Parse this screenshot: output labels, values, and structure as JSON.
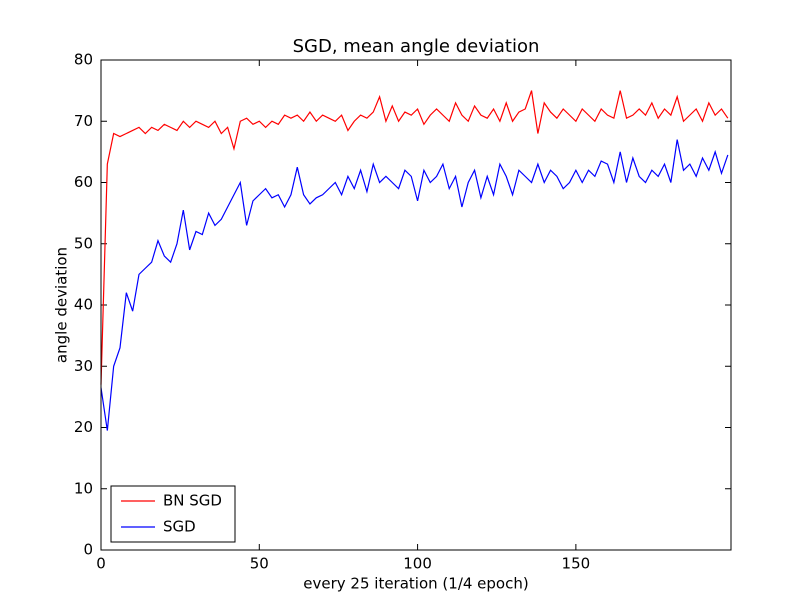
{
  "chart_data": {
    "type": "line",
    "title": "SGD, mean angle deviation",
    "x_label": "every 25 iteration (1/4 epoch)",
    "y_label": "angle deviation",
    "x": [
      0,
      2,
      4,
      6,
      8,
      10,
      12,
      14,
      16,
      18,
      20,
      22,
      24,
      26,
      28,
      30,
      32,
      34,
      36,
      38,
      40,
      42,
      44,
      46,
      48,
      50,
      52,
      54,
      56,
      58,
      60,
      62,
      64,
      66,
      68,
      70,
      72,
      74,
      76,
      78,
      80,
      82,
      84,
      86,
      88,
      90,
      92,
      94,
      96,
      98,
      100,
      102,
      104,
      106,
      108,
      110,
      112,
      114,
      116,
      118,
      120,
      122,
      124,
      126,
      128,
      130,
      132,
      134,
      136,
      138,
      140,
      142,
      144,
      146,
      148,
      150,
      152,
      154,
      156,
      158,
      160,
      162,
      164,
      166,
      168,
      170,
      172,
      174,
      176,
      178,
      180,
      182,
      184,
      186,
      188,
      190,
      192,
      194,
      196,
      198
    ],
    "series": [
      {
        "name": "BN SGD",
        "color": "#ff0000",
        "values": [
          27,
          63,
          68,
          67.5,
          68,
          68.5,
          69,
          68,
          69,
          68.5,
          69.5,
          69,
          68.5,
          70,
          69,
          70,
          69.5,
          69,
          70,
          68,
          69,
          65.5,
          70,
          70.5,
          69.5,
          70,
          69,
          70,
          69.5,
          71,
          70.5,
          71,
          70,
          71.5,
          70,
          71,
          70.5,
          70,
          71,
          68.5,
          70,
          71,
          70.5,
          71.5,
          74,
          70,
          72.5,
          70,
          71.5,
          71,
          72,
          69.5,
          71,
          72,
          71,
          70,
          73,
          71,
          70,
          72.5,
          71,
          70.5,
          72,
          70,
          73,
          70,
          71.5,
          72,
          75,
          68,
          73,
          71.5,
          70.5,
          72,
          71,
          70,
          72,
          71,
          70,
          72,
          71,
          70.5,
          75,
          70.5,
          71,
          72,
          71,
          73,
          70.5,
          72,
          71,
          74,
          70,
          71,
          72,
          70,
          73,
          71,
          72,
          70.5
        ]
      },
      {
        "name": "SGD",
        "color": "#0000ff",
        "values": [
          26.5,
          19.5,
          30,
          33,
          42,
          39,
          45,
          46,
          47,
          50.5,
          48,
          47,
          50,
          55.5,
          49,
          52,
          51.5,
          55,
          53,
          54,
          56,
          58,
          60,
          53,
          57,
          58,
          59,
          57.5,
          58,
          56,
          58,
          62.5,
          58,
          56.5,
          57.5,
          58,
          59,
          60,
          58,
          61,
          59,
          62,
          58.5,
          63,
          60,
          61,
          60,
          59,
          62,
          61,
          57,
          62,
          60,
          61,
          63,
          59,
          61,
          56,
          60,
          62,
          57.5,
          61,
          58,
          63,
          61,
          58,
          62,
          61,
          60,
          63,
          60,
          62,
          61,
          59,
          60,
          62,
          60,
          62,
          61,
          63.5,
          63,
          60,
          65,
          60,
          64,
          61,
          60,
          62,
          61,
          63,
          60,
          67,
          62,
          63,
          61,
          64,
          62,
          65,
          61.5,
          64.5
        ]
      }
    ],
    "xlim": [
      0,
      199
    ],
    "ylim": [
      0,
      80
    ],
    "xticks": [
      0,
      50,
      100,
      150
    ],
    "yticks": [
      0,
      10,
      20,
      30,
      40,
      50,
      60,
      70,
      80
    ],
    "legend": "lower left"
  }
}
